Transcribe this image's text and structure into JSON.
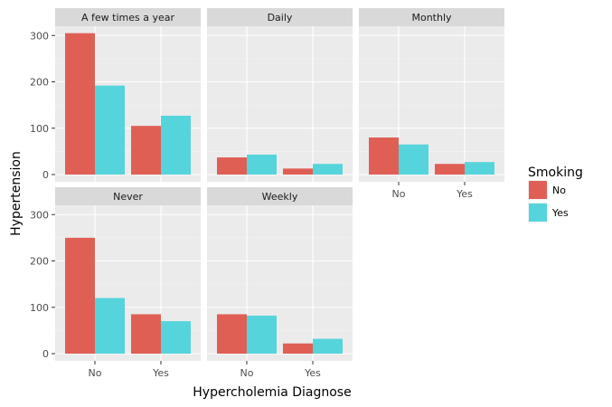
{
  "chart_data": {
    "type": "bar",
    "layout": "facet-grid",
    "xlabel": "Hypercholemia Diagnose",
    "ylabel": "Hypertension",
    "categories": [
      "No",
      "Yes"
    ],
    "yticks": [
      0,
      100,
      200,
      300
    ],
    "ylim": [
      0,
      320
    ],
    "grid": true,
    "legend": {
      "title": "Smoking",
      "placement": "right",
      "entries": [
        {
          "name": "No",
          "color": "#e05f55"
        },
        {
          "name": "Yes",
          "color": "#56d4dc"
        }
      ]
    },
    "facets": [
      {
        "title": "A few times a year",
        "series": [
          {
            "name": "No",
            "values": [
              305,
              105
            ]
          },
          {
            "name": "Yes",
            "values": [
              192,
              127
            ]
          }
        ]
      },
      {
        "title": "Daily",
        "series": [
          {
            "name": "No",
            "values": [
              37,
              13
            ]
          },
          {
            "name": "Yes",
            "values": [
              43,
              23
            ]
          }
        ]
      },
      {
        "title": "Monthly",
        "series": [
          {
            "name": "No",
            "values": [
              80,
              23
            ]
          },
          {
            "name": "Yes",
            "values": [
              65,
              27
            ]
          }
        ]
      },
      {
        "title": "Never",
        "series": [
          {
            "name": "No",
            "values": [
              250,
              85
            ]
          },
          {
            "name": "Yes",
            "values": [
              120,
              70
            ]
          }
        ]
      },
      {
        "title": "Weekly",
        "series": [
          {
            "name": "No",
            "values": [
              85,
              22
            ]
          },
          {
            "name": "Yes",
            "values": [
              82,
              32
            ]
          }
        ]
      }
    ]
  }
}
